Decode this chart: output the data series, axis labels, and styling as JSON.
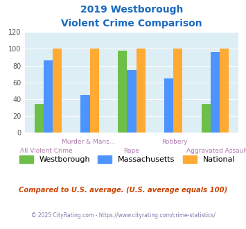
{
  "title_line1": "2019 Westborough",
  "title_line2": "Violent Crime Comparison",
  "westborough": [
    34,
    null,
    98,
    null,
    34
  ],
  "massachusetts": [
    86,
    45,
    75,
    65,
    96
  ],
  "national": [
    100,
    100,
    100,
    100,
    100
  ],
  "westborough_color": "#6dbf47",
  "massachusetts_color": "#4d94ff",
  "national_color": "#ffaa33",
  "ylim": [
    0,
    120
  ],
  "yticks": [
    0,
    20,
    40,
    60,
    80,
    100,
    120
  ],
  "background_color": "#ddeef5",
  "title_color": "#1a6abf",
  "footer_text": "Compared to U.S. average. (U.S. average equals 100)",
  "copyright_text": "© 2025 CityRating.com - https://www.cityrating.com/crime-statistics/",
  "legend_labels": [
    "Westborough",
    "Massachusetts",
    "National"
  ],
  "label_color": "#b07ab0",
  "top_labels": {
    "1": "Murder & Mans...",
    "3": "Robbery"
  },
  "bottom_labels": {
    "0": "All Violent Crime",
    "2": "Rape",
    "4": "Aggravated Assault"
  },
  "bar_width": 0.22,
  "n_groups": 5
}
